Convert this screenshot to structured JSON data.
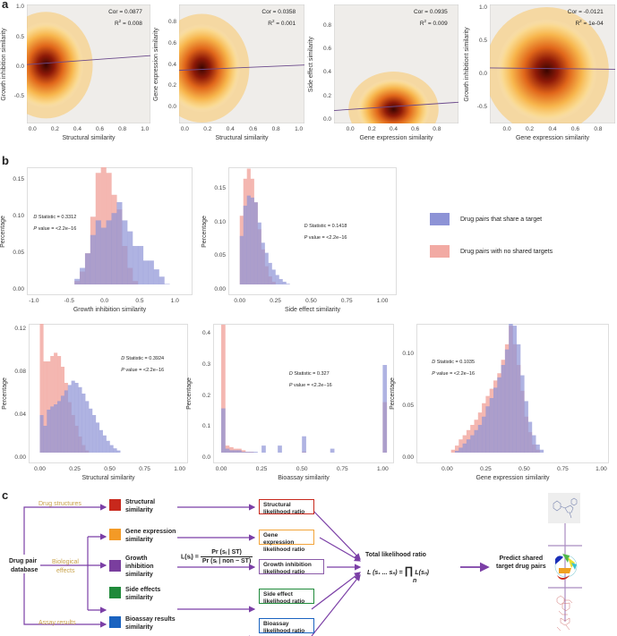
{
  "panel_labels": {
    "a": "a",
    "b": "b",
    "c": "c"
  },
  "colors": {
    "share_target": "#8d93d6",
    "no_shared": "#f2aaa3",
    "fit_line": "#6b4a8c",
    "arrow": "#7b3fa6",
    "scatter_bg": "#efedea"
  },
  "legend": {
    "share_target": "Drug pairs that share a target",
    "no_shared": "Drug pairs with no shared targets"
  },
  "chart_data": [
    {
      "type": "scatter",
      "panel": "a",
      "xlabel": "Structural similarity",
      "ylabel": "Growth inhibition similarity",
      "xlim": [
        -0.05,
        1.05
      ],
      "ylim": [
        -0.95,
        1.05
      ],
      "xticks": [
        "0.0",
        "0.2",
        "0.4",
        "0.6",
        "0.8",
        "1.0"
      ],
      "yticks": [
        "-0.5",
        "0.0",
        "0.5",
        "1.0"
      ],
      "cor": "Cor = 0.0877",
      "r2": "R",
      "r2_sup": "2",
      "r2_value": " = 0.008",
      "fit": [
        [
          -0.05,
          0.04
        ],
        [
          1.05,
          0.19
        ]
      ],
      "density_center": [
        0.12,
        0.03
      ],
      "density_spread": [
        0.13,
        0.28
      ]
    },
    {
      "type": "scatter",
      "panel": "a",
      "xlabel": "Structural similarity",
      "ylabel": "Gene expression similarity",
      "xlim": [
        -0.05,
        1.05
      ],
      "ylim": [
        -0.15,
        0.97
      ],
      "xticks": [
        "0.0",
        "0.2",
        "0.4",
        "0.6",
        "0.8",
        "1.0"
      ],
      "yticks": [
        "0.0",
        "0.2",
        "0.4",
        "0.6",
        "0.8"
      ],
      "cor": "Cor = 0.0358",
      "r2": "R",
      "r2_sup": "2",
      "r2_value": " = 0.001",
      "fit": [
        [
          -0.05,
          0.35
        ],
        [
          1.05,
          0.4
        ]
      ],
      "density_center": [
        0.15,
        0.37
      ],
      "density_spread": [
        0.13,
        0.16
      ]
    },
    {
      "type": "scatter",
      "panel": "a",
      "xlabel": "Gene expression similarity",
      "ylabel": "Side effect similarity",
      "xlim": [
        -0.15,
        1.0
      ],
      "ylim": [
        -0.03,
        0.98
      ],
      "xticks": [
        "0.0",
        "0.2",
        "0.4",
        "0.6",
        "0.8"
      ],
      "yticks": [
        "0.0",
        "0.2",
        "0.4",
        "0.6",
        "0.8"
      ],
      "cor": "Cor = 0.0935",
      "r2": "R",
      "r2_sup": "2",
      "r2_value": " = 0.009",
      "fit": [
        [
          -0.15,
          0.08
        ],
        [
          1.0,
          0.15
        ]
      ],
      "density_center": [
        0.4,
        0.09
      ],
      "density_spread": [
        0.13,
        0.1
      ]
    },
    {
      "type": "scatter",
      "panel": "a",
      "xlabel": "Gene expression similarity",
      "ylabel": "Growth inhibitiont similarity",
      "xlim": [
        -0.15,
        0.95
      ],
      "ylim": [
        -0.75,
        1.05
      ],
      "xticks": [
        "0.0",
        "0.2",
        "0.4",
        "0.6",
        "0.8"
      ],
      "yticks": [
        "-0.5",
        "0.0",
        "0.5",
        "1.0"
      ],
      "cor": "Cor = -0.0121",
      "r2": "R",
      "r2_sup": "2",
      "r2_value": " = 1e-04",
      "fit": [
        [
          -0.15,
          0.09
        ],
        [
          0.95,
          0.07
        ]
      ],
      "density_center": [
        0.35,
        0.05
      ],
      "density_spread": [
        0.17,
        0.3
      ]
    },
    {
      "type": "bar",
      "subtype": "histogram",
      "panel": "b",
      "xlabel": "Growth inhibition similarity",
      "ylabel": "Percentage",
      "xlim": [
        -1.1,
        1.25
      ],
      "ylim": [
        0,
        0.175
      ],
      "xticks": [
        "-1.0",
        "-0.5",
        "0.0",
        "0.5",
        "1.0"
      ],
      "yticks": [
        "0.00",
        "0.05",
        "0.10",
        "0.15"
      ],
      "d_label": "D",
      "d_stat": " Statistic = 0.3312",
      "p_label": "P",
      "p_value": " value = <2.2e−16",
      "bin_start": -0.5,
      "bin_width": 0.075,
      "series": [
        {
          "name": "Drug pairs with no shared targets",
          "values": [
            0.005,
            0.012,
            0.025,
            0.05,
            0.1,
            0.16,
            0.17,
            0.16,
            0.13,
            0.11,
            0.06,
            0.03,
            0.012,
            0.006,
            0.003,
            0.001,
            0,
            0,
            0,
            0
          ]
        },
        {
          "name": "Drug pairs that share a target",
          "values": [
            0.004,
            0.015,
            0.03,
            0.05,
            0.075,
            0.095,
            0.085,
            0.095,
            0.105,
            0.12,
            0.095,
            0.08,
            0.06,
            0.06,
            0.04,
            0.04,
            0.028,
            0.018,
            0.008,
            0.003
          ]
        }
      ]
    },
    {
      "type": "bar",
      "subtype": "histogram",
      "panel": "b",
      "xlabel": "Side effect similarity",
      "ylabel": "Percentage",
      "xlim": [
        -0.08,
        1.1
      ],
      "ylim": [
        0,
        0.19
      ],
      "xticks": [
        "0.00",
        "0.25",
        "0.50",
        "0.75",
        "1.00"
      ],
      "yticks": [
        "0.00",
        "0.05",
        "0.10",
        "0.15"
      ],
      "d_label": "D",
      "d_stat": " Statistic = 0.1418",
      "p_label": "P",
      "p_value": " value = <2.2e−16",
      "bin_start": 0,
      "bin_width": 0.025,
      "series": [
        {
          "name": "Drug pairs with no shared targets",
          "values": [
            0.11,
            0.165,
            0.18,
            0.165,
            0.13,
            0.09,
            0.06,
            0.035,
            0.02,
            0.012,
            0.007,
            0.004,
            0.003,
            0.002,
            0.001,
            0.001
          ]
        },
        {
          "name": "Drug pairs that share a target",
          "values": [
            0.08,
            0.125,
            0.14,
            0.137,
            0.13,
            0.1,
            0.07,
            0.055,
            0.04,
            0.03,
            0.022,
            0.016,
            0.012,
            0.009,
            0.007,
            0.005,
            0.004,
            0.003,
            0.003,
            0.002,
            0.002,
            0.002,
            0.001,
            0.001,
            0.001,
            0.001,
            0.001,
            0.001,
            0.001,
            0.001,
            0.001,
            0.001,
            0.001,
            0.001,
            0.001
          ]
        }
      ]
    },
    {
      "type": "bar",
      "subtype": "histogram",
      "panel": "b",
      "xlabel": "Structural similarity",
      "ylabel": "Percentage",
      "xlim": [
        -0.08,
        1.06
      ],
      "ylim": [
        0,
        0.13
      ],
      "xticks": [
        "0.00",
        "0.25",
        "0.50",
        "0.75",
        "1.00"
      ],
      "yticks": [
        "0.00",
        "0.04",
        "0.08",
        "0.12"
      ],
      "d_label": "D",
      "d_stat": " Statistic = 0.3924",
      "p_label": "P",
      "p_value": " value = <2.2e−16",
      "bin_start": 0,
      "bin_width": 0.025,
      "series": [
        {
          "name": "Drug pairs with no shared targets",
          "values": [
            0.125,
            0.09,
            0.09,
            0.095,
            0.098,
            0.095,
            0.085,
            0.07,
            0.052,
            0.04,
            0.03,
            0.02,
            0.012,
            0.007,
            0.004,
            0.002,
            0.001
          ]
        },
        {
          "name": "Drug pairs that share a target",
          "values": [
            0.04,
            0.03,
            0.045,
            0.048,
            0.05,
            0.053,
            0.058,
            0.063,
            0.068,
            0.072,
            0.07,
            0.066,
            0.06,
            0.053,
            0.046,
            0.04,
            0.033,
            0.026,
            0.021,
            0.016,
            0.012,
            0.009,
            0.007,
            0.005,
            0.004,
            0.003,
            0.002,
            0.002,
            0.001,
            0.001,
            0.001,
            0.001,
            0.001,
            0.001,
            0.001,
            0.001,
            0.001,
            0.001,
            0.001,
            0.002
          ]
        }
      ]
    },
    {
      "type": "bar",
      "subtype": "histogram",
      "panel": "b",
      "xlabel": "Bioassay similarity",
      "ylabel": "Percentage",
      "xlim": [
        -0.05,
        1.07
      ],
      "ylim": [
        0,
        0.45
      ],
      "xticks": [
        "0.00",
        "0.25",
        "0.50",
        "0.75",
        "1.00"
      ],
      "yticks": [
        "0.0",
        "0.1",
        "0.2",
        "0.3",
        "0.4"
      ],
      "d_label": "D",
      "d_stat": " Statistic = 0.327",
      "p_label": "P",
      "p_value": " value = <2.2e−16",
      "bin_start": 0,
      "bin_width": 0.025,
      "series": [
        {
          "name": "Drug pairs with no shared targets",
          "values": [
            0.43,
            0.04,
            0.035,
            0.03,
            0.03,
            0.025,
            0.02,
            0.02,
            0.015,
            0.015,
            0.015,
            0.012,
            0.01,
            0.01,
            0.01,
            0.01,
            0.01,
            0.01,
            0.01,
            0.01,
            0.02,
            0.008,
            0.008,
            0.008,
            0.008,
            0.008,
            0.008,
            0.008,
            0.008,
            0.008,
            0.008,
            0.008,
            0.008,
            0.008,
            0.008,
            0.008,
            0.008,
            0.008,
            0.008,
            0.008,
            0.18
          ]
        },
        {
          "name": "Drug pairs that share a target",
          "values": [
            0.16,
            0.03,
            0.025,
            0.025,
            0.025,
            0.02,
            0.02,
            0.02,
            0.02,
            0.015,
            0.04,
            0.015,
            0.012,
            0.012,
            0.04,
            0.015,
            0.015,
            0.012,
            0.012,
            0.012,
            0.07,
            0.01,
            0.01,
            0.01,
            0.015,
            0.01,
            0.01,
            0.03,
            0.01,
            0.01,
            0.015,
            0.01,
            0.01,
            0.01,
            0.01,
            0.01,
            0.01,
            0.01,
            0.01,
            0.008,
            0.3
          ]
        }
      ]
    },
    {
      "type": "bar",
      "subtype": "histogram",
      "panel": "b",
      "xlabel": "Gene expression similarity",
      "ylabel": "Percentage",
      "xlim": [
        -0.2,
        1.05
      ],
      "ylim": [
        0,
        0.135
      ],
      "xticks": [
        "0.00",
        "0.25",
        "0.50",
        "0.75",
        "1.00"
      ],
      "yticks": [
        "0.00",
        "0.05",
        "0.10"
      ],
      "d_label": "D",
      "d_stat": " Statistic = 0.1035",
      "p_label": "P",
      "p_value": " value = <2.2e−16",
      "bin_start": -0.1,
      "bin_width": 0.025,
      "series": [
        {
          "name": "Drug pairs with no shared targets",
          "values": [
            0,
            0,
            0,
            0,
            0.003,
            0.008,
            0.012,
            0.018,
            0.022,
            0.027,
            0.032,
            0.037,
            0.044,
            0.053,
            0.06,
            0.067,
            0.075,
            0.082,
            0.095,
            0.11,
            0.128,
            0.11,
            0.09,
            0.065,
            0.04,
            0.025,
            0.013,
            0.008,
            0.004,
            0.002,
            0.001
          ]
        },
        {
          "name": "Drug pairs that share a target",
          "values": [
            0,
            0,
            0,
            0.001,
            0.002,
            0.004,
            0.007,
            0.01,
            0.014,
            0.018,
            0.022,
            0.027,
            0.032,
            0.04,
            0.05,
            0.058,
            0.068,
            0.078,
            0.09,
            0.105,
            0.132,
            0.128,
            0.11,
            0.08,
            0.055,
            0.035,
            0.022,
            0.013,
            0.008,
            0.005,
            0.003,
            0.002,
            0.001,
            0.001
          ]
        }
      ]
    }
  ],
  "diagram": {
    "source": "Drug pair database",
    "source_line1": "Drug pair",
    "source_line2": "database",
    "branches": {
      "structures": "Drug structures",
      "bio1": "Biological",
      "bio2": "effects",
      "assay": "Assay results"
    },
    "similarities": [
      {
        "l1": "Structural",
        "l2": "similarity",
        "l3": "",
        "color": "#c8281c"
      },
      {
        "l1": "Gene expression",
        "l2": "similarity",
        "l3": "",
        "color": "#f39a26"
      },
      {
        "l1": "Growth",
        "l2": "inhibition",
        "l3": "similarity",
        "color": "#7a3e9e"
      },
      {
        "l1": "Side effects",
        "l2": "similarity",
        "l3": "",
        "color": "#1f8a3a"
      },
      {
        "l1": "Bioassay results",
        "l2": "similarity",
        "l3": "",
        "color": "#1a63c0"
      }
    ],
    "ratios": [
      {
        "l1": "Structural",
        "l2": "likelihood ratio",
        "color": "#c8281c"
      },
      {
        "l1": "Gene expression",
        "l2": "likelihood ratio",
        "color": "#f3a43a"
      },
      {
        "l1": "Growth inhibition",
        "l2": "likelihood ratio",
        "color": "#8a5aa8"
      },
      {
        "l1": "Side effect",
        "l2": "likelihood ratio",
        "color": "#1f8a3a"
      },
      {
        "l1": "Bioassay",
        "l2": "likelihood ratio",
        "color": "#1a63c0"
      }
    ],
    "formula_lhs": "L(sᵢ) =",
    "formula_num": "Pr (sᵢ | ST)",
    "formula_den": "Pr (sᵢ | non − ST)",
    "total_title": "Total likelihood ratio",
    "total_formula_lhs": "L (s₁ ... sₙ) =",
    "total_formula_prod": "∏",
    "total_formula_sub": "n",
    "total_formula_rhs": "L(sₙ)",
    "predict_line1": "Predict shared",
    "predict_line2": "target drug pairs"
  }
}
